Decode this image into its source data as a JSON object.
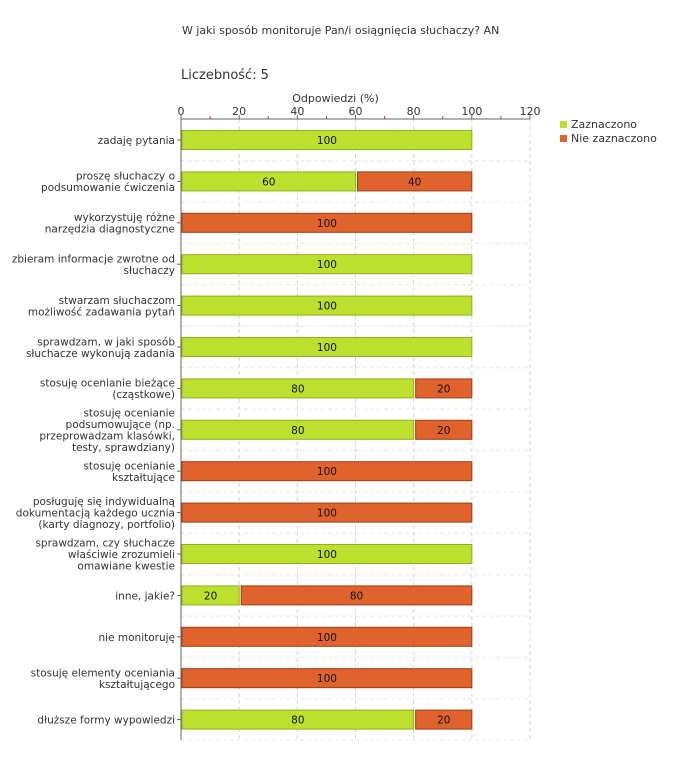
{
  "header": {
    "title": "W jaki sposób monitoruje Pan/i osiągnięcia słuchaczy?  AN",
    "count_label": "Liczebność:",
    "count_value": "5"
  },
  "legend": [
    {
      "name": "Zaznaczono",
      "color": "#bde02e"
    },
    {
      "name": "Nie zaznaczono",
      "color": "#e0632e"
    }
  ],
  "chart_data": {
    "type": "bar",
    "orientation": "horizontal",
    "stacked": true,
    "title": "W jaki sposób monitoruje Pan/i osiągnięcia słuchaczy?  AN",
    "xlabel": "Odpowiedzi (%)",
    "xlim": [
      0,
      120
    ],
    "xticks": [
      0,
      20,
      40,
      60,
      80,
      100,
      120
    ],
    "grid": true,
    "categories": [
      [
        "zadaję pytania"
      ],
      [
        "proszę słuchaczy o",
        "podsumowanie ćwiczenia"
      ],
      [
        "wykorzystuję różne",
        "narzędzia diagnostyczne"
      ],
      [
        "zbieram informacje zwrotne od",
        "słuchaczy"
      ],
      [
        "stwarzam słuchaczom",
        "możliwość zadawania pytań"
      ],
      [
        "sprawdzam, w jaki sposób",
        "słuchacze wykonują zadania"
      ],
      [
        "stosuję ocenianie bieżące",
        "(cząstkowe)"
      ],
      [
        "stosuję ocenianie",
        "podsumowujące (np.",
        "przeprowadzam klasówki,",
        "testy, sprawdziany)"
      ],
      [
        "stosuję ocenianie",
        "kształtujące"
      ],
      [
        "posługuję się indywidualną",
        "dokumentacją każdego ucznia",
        "(karty diagnozy, portfolio)"
      ],
      [
        "sprawdzam, czy słuchacze",
        "właściwie zrozumieli",
        "omawiane kwestie"
      ],
      [
        "inne, jakie?"
      ],
      [
        "nie monitoruję"
      ],
      [
        "stosuję elementy oceniania",
        "kształtującego"
      ],
      [
        "dłuższe formy wypowiedzi"
      ]
    ],
    "series": [
      {
        "name": "Zaznaczono",
        "color": "#bde02e",
        "values": [
          100,
          60,
          0,
          100,
          100,
          100,
          80,
          80,
          0,
          0,
          100,
          20,
          0,
          0,
          80
        ]
      },
      {
        "name": "Nie zaznaczono",
        "color": "#e0632e",
        "values": [
          0,
          40,
          100,
          0,
          0,
          0,
          20,
          20,
          100,
          100,
          0,
          80,
          100,
          100,
          20
        ]
      }
    ]
  }
}
